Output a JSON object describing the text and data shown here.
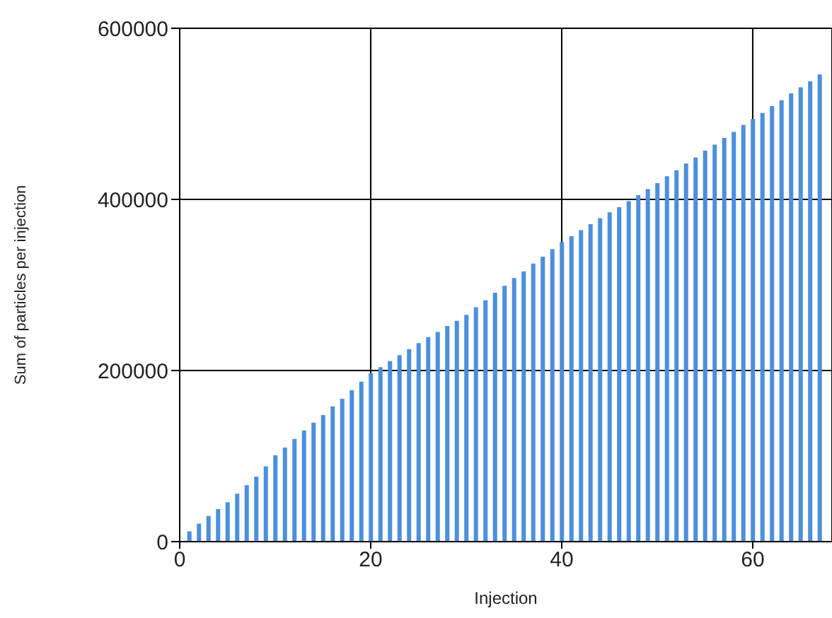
{
  "chart_data": {
    "type": "bar",
    "xlabel": "Injection",
    "ylabel": "Sum of particles per injection",
    "x": [
      1,
      2,
      3,
      4,
      5,
      6,
      7,
      8,
      9,
      10,
      11,
      12,
      13,
      14,
      15,
      16,
      17,
      18,
      19,
      20,
      21,
      22,
      23,
      24,
      25,
      26,
      27,
      28,
      29,
      30,
      31,
      32,
      33,
      34,
      35,
      36,
      37,
      38,
      39,
      40,
      41,
      42,
      43,
      44,
      45,
      46,
      47,
      48,
      49,
      50,
      51,
      52,
      53,
      54,
      55,
      56,
      57,
      58,
      59,
      60,
      61,
      62,
      63,
      64,
      65,
      66,
      67
    ],
    "values": [
      12000,
      21000,
      30000,
      38000,
      46000,
      56000,
      66000,
      76000,
      88000,
      101000,
      110000,
      120000,
      130000,
      139000,
      148000,
      158000,
      167000,
      177000,
      187000,
      197000,
      204000,
      211000,
      218000,
      225000,
      232000,
      239000,
      245000,
      252000,
      258000,
      265000,
      274000,
      282000,
      291000,
      299000,
      308000,
      316000,
      325000,
      333000,
      342000,
      350000,
      357000,
      364000,
      371000,
      378000,
      385000,
      391000,
      398000,
      405000,
      412000,
      419000,
      427000,
      434000,
      442000,
      449000,
      457000,
      464000,
      472000,
      479000,
      487000,
      494000,
      501000,
      509000,
      516000,
      524000,
      531000,
      538000,
      546000
    ],
    "color": "#4a8fe0",
    "xlim": [
      0,
      68.3
    ],
    "xticks": [
      0,
      20,
      40,
      60
    ],
    "ylim": [
      0,
      600000
    ],
    "yticks": [
      0,
      200000,
      400000,
      600000
    ],
    "grid": true
  }
}
